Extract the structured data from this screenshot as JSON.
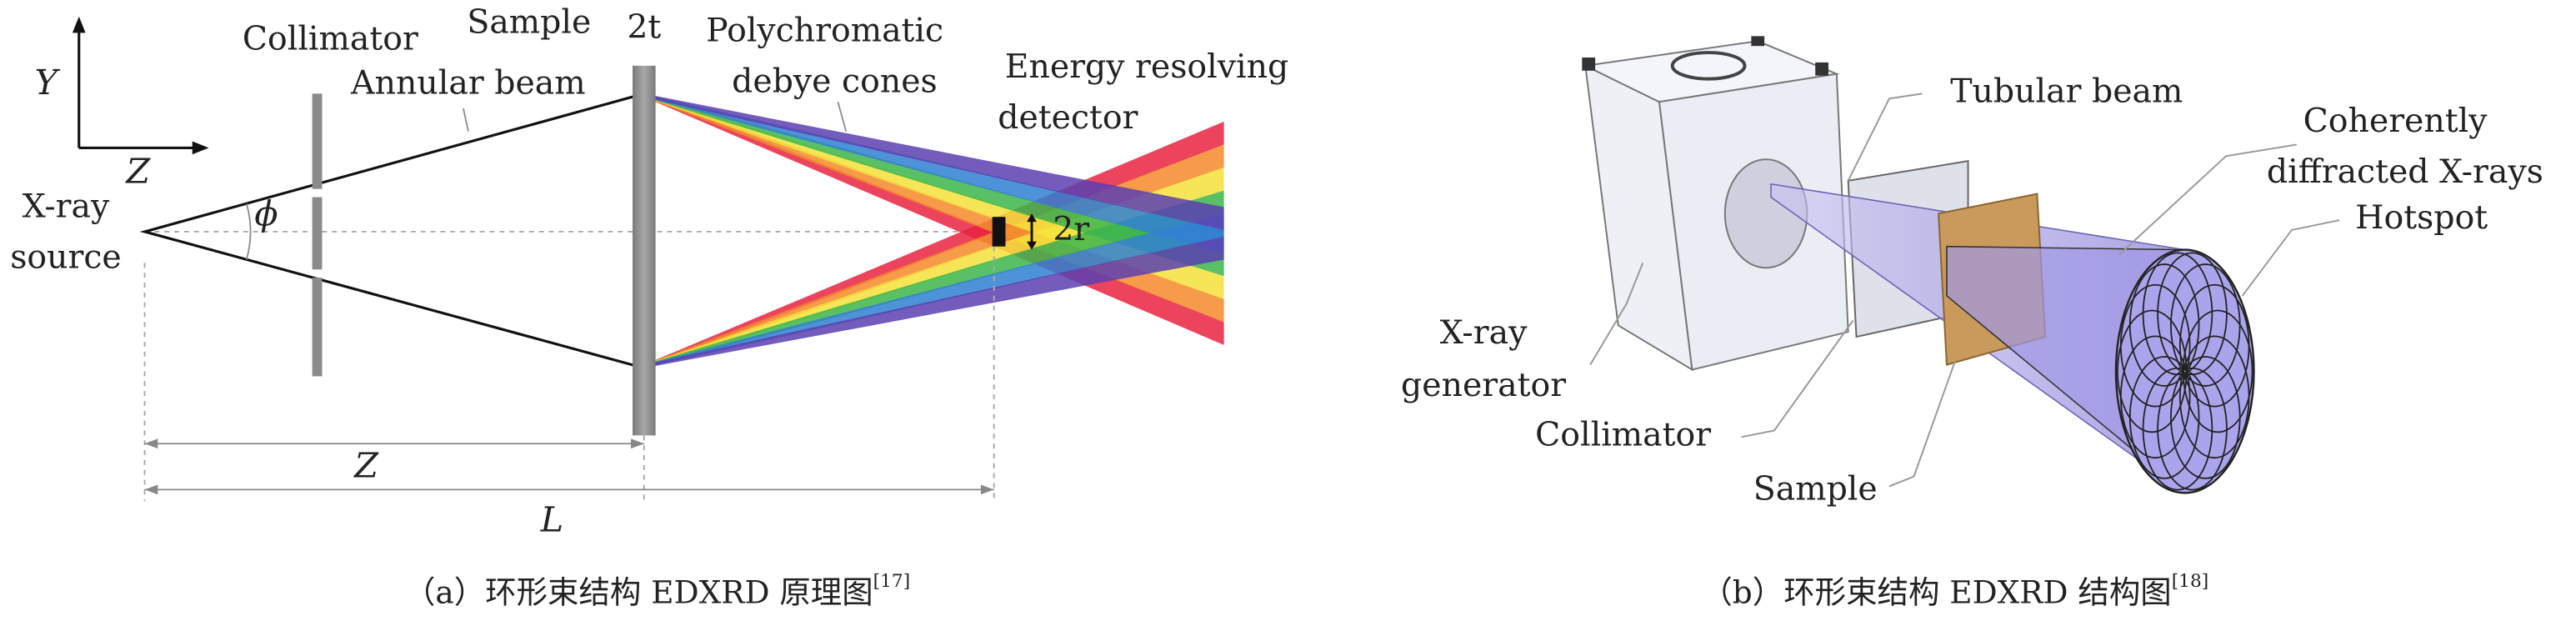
{
  "panel_a": {
    "axis_y": "Y",
    "axis_z": "Z",
    "source_line1": "X-ray",
    "source_line2": "source",
    "collimator": "Collimator",
    "sample": "Sample",
    "thickness": "2t",
    "annular_beam": "Annular beam",
    "angle": "ϕ",
    "cones_line1": "Polychromatic",
    "cones_line2": "debye cones",
    "detector_line1": "Energy resolving",
    "detector_line2": "detector",
    "radius": "2r",
    "dim_z": "Z",
    "dim_l": "L",
    "caption": "（a）环形束结构 EDXRD 原理图",
    "caption_ref": "[17]"
  },
  "panel_b": {
    "tubular_beam": "Tubular beam",
    "coherent_line1": "Coherently",
    "coherent_line2": "diffracted X-rays",
    "hotspot": "Hotspot",
    "generator_line1": "X-ray",
    "generator_line2": "generator",
    "collimator": "Collimator",
    "sample": "Sample",
    "caption": "（b）环形束结构 EDXRD 结构图",
    "caption_ref": "[18]"
  }
}
